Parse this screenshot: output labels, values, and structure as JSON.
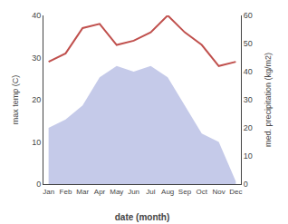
{
  "chart_data": {
    "type": "line",
    "categories": [
      "Jan",
      "Feb",
      "Mar",
      "Apr",
      "May",
      "Jun",
      "Jul",
      "Aug",
      "Sep",
      "Oct",
      "Nov",
      "Dec"
    ],
    "series": [
      {
        "type": "area",
        "axis": "y2",
        "color": "#c5cae9",
        "values": [
          20,
          23,
          28,
          38,
          42,
          40,
          42,
          38,
          28,
          18,
          15,
          1
        ]
      },
      {
        "type": "line",
        "color": "#c0504d",
        "values": [
          29,
          31,
          37,
          38,
          33,
          34,
          36,
          40,
          36,
          33,
          28,
          29
        ]
      }
    ],
    "xlabel": "date (month)",
    "ylabel": "max temp (C)",
    "y2label": "med. precipitation (kg/m2)",
    "ylim": [
      0,
      40
    ],
    "yticks": [
      0,
      10,
      20,
      30,
      40
    ],
    "y2lim": [
      0,
      60
    ],
    "y2ticks": [
      0,
      10,
      20,
      30,
      40,
      50,
      60
    ],
    "grid": false
  }
}
